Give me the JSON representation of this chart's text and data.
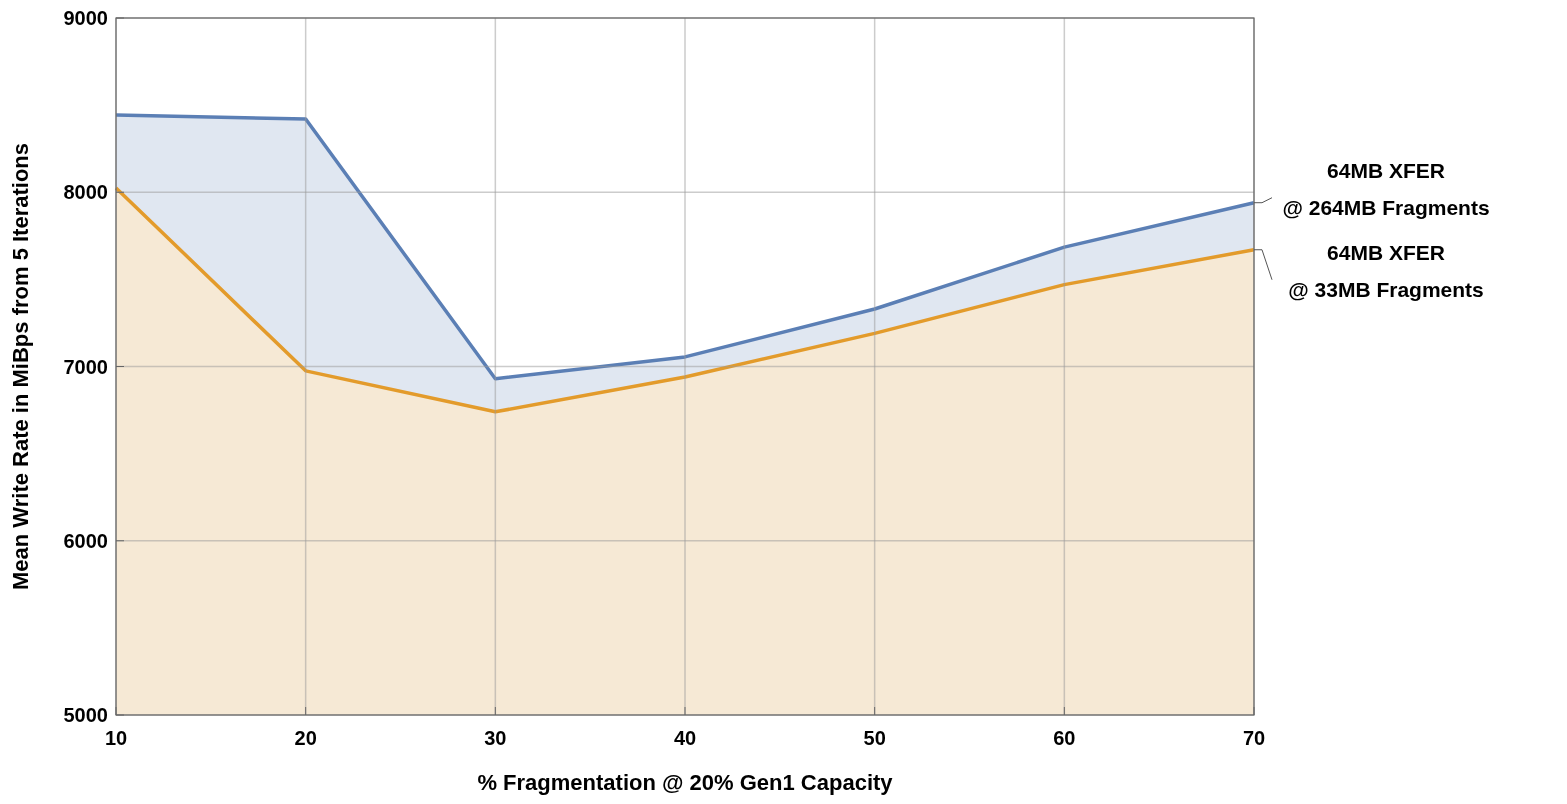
{
  "chart_data": {
    "type": "area",
    "xlabel": "% Fragmentation @ 20% Gen1 Capacity",
    "ylabel": "Mean Write Rate in MiBps from 5 Iterations",
    "x": [
      10,
      20,
      30,
      40,
      50,
      60,
      70
    ],
    "series": [
      {
        "name": "64MB XFER @ 264MB Fragments",
        "color": "#5b7fb5",
        "values": [
          8443,
          8420,
          6930,
          7055,
          7330,
          7685,
          7940
        ]
      },
      {
        "name": "64MB XFER @ 33MB Fragments",
        "color": "#e39b2b",
        "values": [
          8025,
          6975,
          6740,
          6940,
          7190,
          7470,
          7670
        ]
      }
    ],
    "xlim": [
      10,
      70
    ],
    "xticks": [
      10,
      20,
      30,
      40,
      50,
      60,
      70
    ],
    "ylim": [
      5000,
      9000
    ],
    "yticks": [
      5000,
      6000,
      7000,
      8000,
      9000
    ],
    "grid": true,
    "line_style": "solid"
  }
}
